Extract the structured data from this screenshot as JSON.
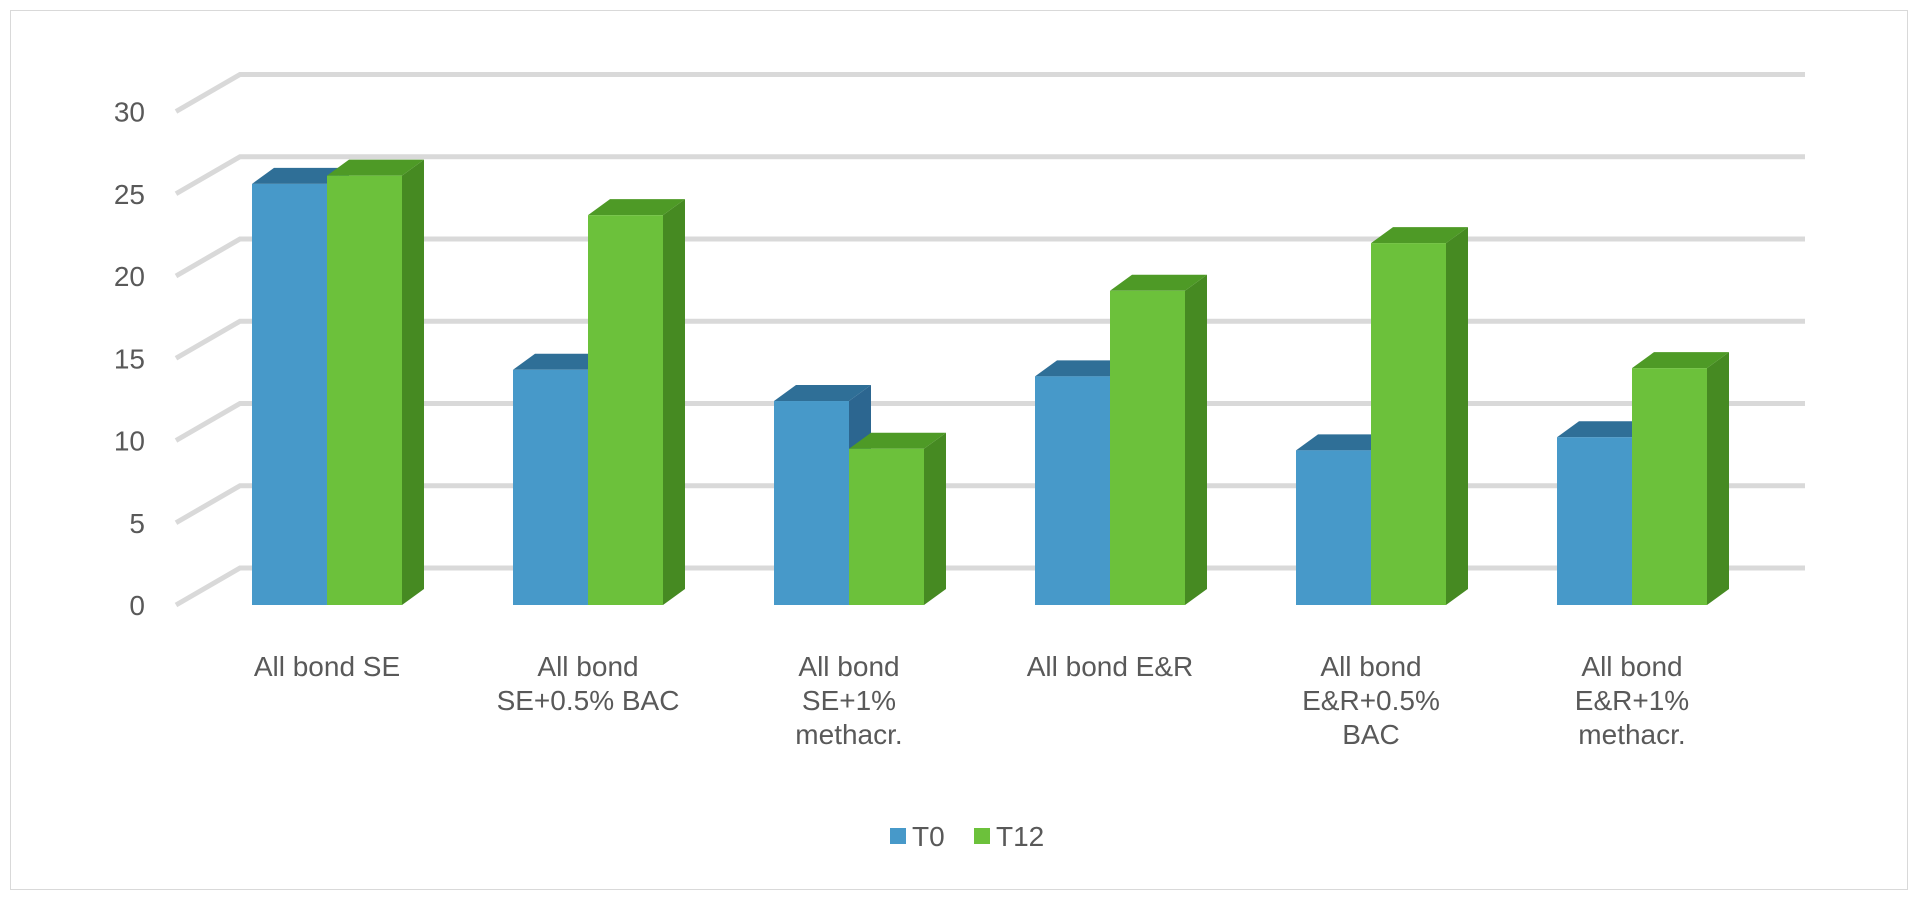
{
  "chart_data": {
    "type": "bar",
    "variant": "3d-clustered-column",
    "title": "",
    "xlabel": "",
    "ylabel": "",
    "ylim": [
      0,
      30
    ],
    "yticks": [
      0,
      5,
      10,
      15,
      20,
      25,
      30
    ],
    "grid": true,
    "legend_position": "bottom",
    "categories": [
      [
        "All bond SE"
      ],
      [
        "All bond",
        "SE+0.5% BAC"
      ],
      [
        "All bond",
        "SE+1%",
        "methacr."
      ],
      [
        "All bond E&R"
      ],
      [
        "All bond",
        "E&R+0.5%",
        "BAC"
      ],
      [
        "All bond",
        "E&R+1%",
        "methacr."
      ]
    ],
    "series": [
      {
        "name": "T0",
        "color": "#4799c9",
        "top_color": "#2f6f97",
        "side_color": "#2c6690",
        "values": [
          25.6,
          14.3,
          12.4,
          13.9,
          9.4,
          10.2
        ]
      },
      {
        "name": "T12",
        "color": "#6cc13b",
        "top_color": "#4e9a26",
        "side_color": "#468a22",
        "values": [
          26.1,
          23.7,
          9.5,
          19.1,
          22.0,
          14.4
        ]
      }
    ]
  }
}
